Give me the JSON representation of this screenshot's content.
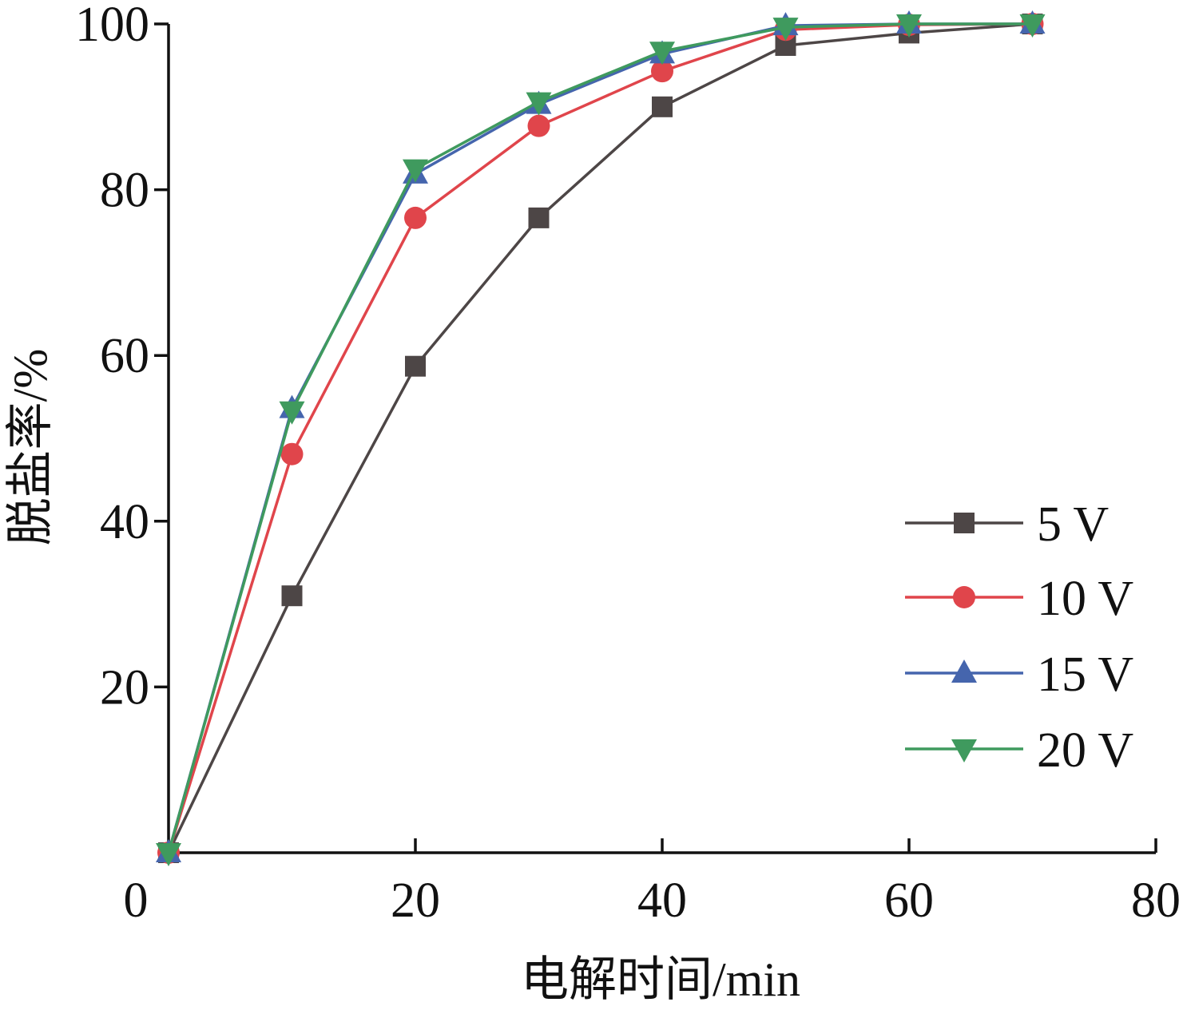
{
  "chart_data": {
    "type": "line",
    "xlabel": "电解时间/min",
    "ylabel": "脱盐率/%",
    "xlim": [
      0,
      80
    ],
    "ylim": [
      0,
      100
    ],
    "x_ticks": [
      "0",
      "20",
      "40",
      "60",
      "80"
    ],
    "y_ticks": [
      "20",
      "40",
      "60",
      "80",
      "100"
    ],
    "grid": false,
    "legend_position": "right",
    "x": [
      0,
      10,
      20,
      30,
      40,
      50,
      60,
      70
    ],
    "series": [
      {
        "name": "5 V",
        "color": "#4d4646",
        "marker": "square",
        "values": [
          0,
          31.0,
          58.7,
          76.6,
          90.0,
          97.4,
          98.9,
          100
        ]
      },
      {
        "name": "10 V",
        "color": "#e0454b",
        "marker": "circle",
        "values": [
          0,
          48.1,
          76.6,
          87.7,
          94.3,
          99.3,
          99.9,
          100
        ]
      },
      {
        "name": "15 V",
        "color": "#4565ad",
        "marker": "triangle-up",
        "values": [
          0,
          53.6,
          81.9,
          90.3,
          96.4,
          99.8,
          100,
          100
        ]
      },
      {
        "name": "20 V",
        "color": "#3f9a5e",
        "marker": "triangle-down",
        "values": [
          0,
          53.3,
          82.5,
          90.6,
          96.7,
          99.6,
          100,
          100
        ]
      }
    ]
  }
}
